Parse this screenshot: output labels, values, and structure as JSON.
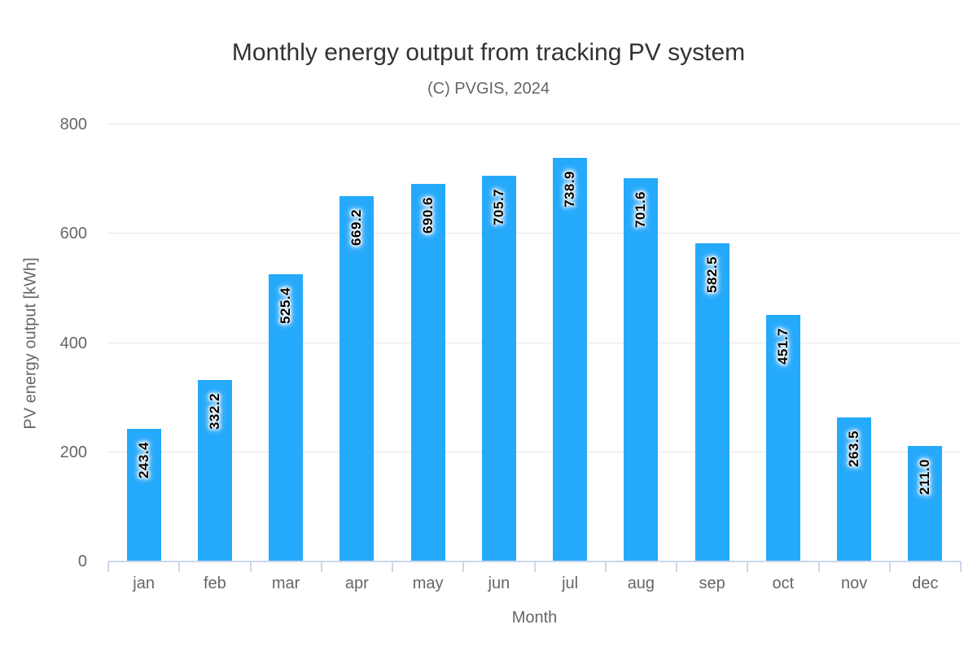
{
  "chart_data": {
    "type": "bar",
    "title": "Monthly energy output from tracking PV system",
    "subtitle": "(C) PVGIS, 2024",
    "categories": [
      "jan",
      "feb",
      "mar",
      "apr",
      "may",
      "jun",
      "jul",
      "aug",
      "sep",
      "oct",
      "nov",
      "dec"
    ],
    "values": [
      243.4,
      332.2,
      525.4,
      669.2,
      690.6,
      705.7,
      738.9,
      701.6,
      582.5,
      451.7,
      263.5,
      211.0
    ],
    "data_labels": [
      "243.4",
      "332.2",
      "525.4",
      "669.2",
      "690.6",
      "705.7",
      "738.9",
      "701.6",
      "582.5",
      "451.7",
      "263.5",
      "211.0"
    ],
    "xlabel": "Month",
    "ylabel": "PV energy output [kWh]",
    "ylim": [
      0,
      800
    ],
    "yticks": [
      0,
      200,
      400,
      600,
      800
    ],
    "grid": true,
    "legend": false,
    "data_label_rotation": 270,
    "data_label_position": "inside-top"
  },
  "colors": {
    "bar_fill": "#25a9fb",
    "axis_line": "#ccd6eb",
    "gridline": "#e6e6e6",
    "tick_text": "#666666",
    "title_text": "#333333",
    "subtitle_text": "#666666",
    "data_label_text": "#000000",
    "background": "#ffffff"
  }
}
